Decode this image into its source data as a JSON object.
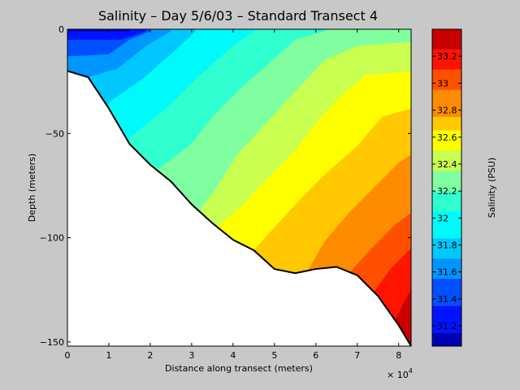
{
  "chart_data": {
    "type": "heatmap",
    "title": "Salinity – Day 5/6/03 – Standard Transect 4",
    "xlabel": "Distance along transect (meters)",
    "ylabel": "Depth (meters)",
    "x_multiplier": "× 10",
    "x_multiplier_exp": "4",
    "xlim": [
      0,
      8.3
    ],
    "ylim": [
      -152,
      0
    ],
    "x_ticks": [
      "0",
      "1",
      "2",
      "3",
      "4",
      "5",
      "6",
      "7",
      "8"
    ],
    "y_ticks": [
      "0",
      "−50",
      "−100",
      "−150"
    ],
    "x_tick_values": [
      0,
      1,
      2,
      3,
      4,
      5,
      6,
      7,
      8
    ],
    "y_tick_values": [
      0,
      -50,
      -100,
      -150
    ],
    "colorbar": {
      "label": "Salinity (PSU)",
      "range": [
        31.05,
        33.4
      ],
      "tick_labels": [
        "31.2",
        "31.4",
        "31.6",
        "31.8",
        "32",
        "32.2",
        "32.4",
        "32.6",
        "32.8",
        "33",
        "33.2"
      ],
      "tick_values": [
        31.2,
        31.4,
        31.6,
        31.8,
        32.0,
        32.2,
        32.4,
        32.6,
        32.8,
        33.0,
        33.2
      ],
      "levels": [
        {
          "lo": 31.05,
          "hi": 31.15,
          "color": "#0000b4"
        },
        {
          "lo": 31.15,
          "hi": 31.35,
          "color": "#0014ff"
        },
        {
          "lo": 31.35,
          "hi": 31.55,
          "color": "#0050ff"
        },
        {
          "lo": 31.55,
          "hi": 31.7,
          "color": "#0096ff"
        },
        {
          "lo": 31.7,
          "hi": 31.85,
          "color": "#00c8ff"
        },
        {
          "lo": 31.85,
          "hi": 32.05,
          "color": "#00fafa"
        },
        {
          "lo": 32.05,
          "hi": 32.2,
          "color": "#30ffd0"
        },
        {
          "lo": 32.2,
          "hi": 32.35,
          "color": "#80ffa0"
        },
        {
          "lo": 32.35,
          "hi": 32.5,
          "color": "#c8ff50"
        },
        {
          "lo": 32.5,
          "hi": 32.65,
          "color": "#ffff00"
        },
        {
          "lo": 32.65,
          "hi": 32.75,
          "color": "#ffc800"
        },
        {
          "lo": 32.75,
          "hi": 32.95,
          "color": "#ff8c00"
        },
        {
          "lo": 32.95,
          "hi": 33.1,
          "color": "#ff5000"
        },
        {
          "lo": 33.1,
          "hi": 33.25,
          "color": "#ff1400"
        },
        {
          "lo": 33.25,
          "hi": 33.4,
          "color": "#c80000"
        }
      ]
    },
    "bottom_profile": [
      {
        "x": 0,
        "y": -20
      },
      {
        "x": 0.5,
        "y": -23
      },
      {
        "x": 1.0,
        "y": -38
      },
      {
        "x": 1.5,
        "y": -55
      },
      {
        "x": 2.0,
        "y": -65
      },
      {
        "x": 2.5,
        "y": -73
      },
      {
        "x": 3.0,
        "y": -84
      },
      {
        "x": 3.5,
        "y": -93
      },
      {
        "x": 4.0,
        "y": -101
      },
      {
        "x": 4.5,
        "y": -106
      },
      {
        "x": 5.0,
        "y": -115
      },
      {
        "x": 5.5,
        "y": -117
      },
      {
        "x": 6.0,
        "y": -115
      },
      {
        "x": 6.5,
        "y": -114
      },
      {
        "x": 7.0,
        "y": -118
      },
      {
        "x": 7.5,
        "y": -128
      },
      {
        "x": 8.0,
        "y": -142
      },
      {
        "x": 8.3,
        "y": -152
      }
    ],
    "contour_bands": [
      {
        "level": "31.1",
        "color": "#0000b4",
        "boundary": [
          [
            0,
            -1
          ],
          [
            1.5,
            -1
          ]
        ]
      },
      {
        "level": "31.3",
        "color": "#0014ff",
        "boundary": [
          [
            0,
            -5
          ],
          [
            1.3,
            -5
          ],
          [
            1.9,
            -1
          ]
        ]
      },
      {
        "level": "31.5",
        "color": "#0050ff",
        "boundary": [
          [
            0,
            -13
          ],
          [
            1.0,
            -12
          ],
          [
            1.5,
            -5
          ],
          [
            2.0,
            -1
          ]
        ]
      },
      {
        "level": "31.6",
        "color": "#0096ff",
        "boundary": [
          [
            0.5,
            -23
          ],
          [
            1.2,
            -19
          ],
          [
            1.9,
            -8
          ],
          [
            2.5,
            -1
          ]
        ]
      },
      {
        "level": "31.8",
        "color": "#00c8ff",
        "boundary": [
          [
            1.0,
            -35
          ],
          [
            1.8,
            -24
          ],
          [
            2.5,
            -12
          ],
          [
            3.1,
            -1
          ]
        ]
      },
      {
        "level": "32.0",
        "color": "#00fafa",
        "boundary": [
          [
            1.5,
            -52
          ],
          [
            2.5,
            -36
          ],
          [
            3.2,
            -22
          ],
          [
            4.0,
            -8
          ],
          [
            4.5,
            -1
          ]
        ]
      },
      {
        "level": "32.2",
        "color": "#30ffd0",
        "boundary": [
          [
            2.2,
            -67
          ],
          [
            3.0,
            -55
          ],
          [
            3.5,
            -42
          ],
          [
            4.2,
            -28
          ],
          [
            5.0,
            -14
          ],
          [
            5.5,
            -5
          ],
          [
            6.2,
            -1
          ]
        ]
      },
      {
        "level": "32.3",
        "color": "#80ffa0",
        "boundary": [
          [
            3.2,
            -87
          ],
          [
            3.6,
            -76
          ],
          [
            4.1,
            -60
          ],
          [
            4.8,
            -45
          ],
          [
            5.5,
            -30
          ],
          [
            6.2,
            -15
          ],
          [
            7.0,
            -8
          ],
          [
            8.3,
            -6
          ]
        ]
      },
      {
        "level": "32.5",
        "color": "#c8ff50",
        "boundary": [
          [
            3.6,
            -95
          ],
          [
            4.2,
            -85
          ],
          [
            4.8,
            -72
          ],
          [
            5.5,
            -58
          ],
          [
            6.0,
            -45
          ],
          [
            6.6,
            -32
          ],
          [
            7.2,
            -22
          ],
          [
            8.3,
            -20
          ]
        ]
      },
      {
        "level": "32.6",
        "color": "#ffff00",
        "boundary": [
          [
            4.5,
            -106
          ],
          [
            5.0,
            -95
          ],
          [
            5.6,
            -82
          ],
          [
            6.2,
            -70
          ],
          [
            7.0,
            -56
          ],
          [
            7.6,
            -42
          ],
          [
            8.3,
            -38
          ]
        ]
      },
      {
        "level": "32.7",
        "color": "#ffc800",
        "boundary": [
          [
            5.8,
            -116
          ],
          [
            6.2,
            -102
          ],
          [
            6.8,
            -88
          ],
          [
            7.4,
            -76
          ],
          [
            8.0,
            -64
          ],
          [
            8.3,
            -60
          ]
        ]
      },
      {
        "level": "32.9",
        "color": "#ff8c00",
        "boundary": [
          [
            6.8,
            -117
          ],
          [
            7.3,
            -106
          ],
          [
            7.9,
            -94
          ],
          [
            8.3,
            -88
          ]
        ]
      },
      {
        "level": "33.0",
        "color": "#ff5000",
        "boundary": [
          [
            7.4,
            -126
          ],
          [
            7.8,
            -115
          ],
          [
            8.3,
            -105
          ]
        ]
      },
      {
        "level": "33.2",
        "color": "#ff1400",
        "boundary": [
          [
            7.9,
            -140
          ],
          [
            8.1,
            -132
          ],
          [
            8.3,
            -125
          ]
        ]
      }
    ]
  }
}
